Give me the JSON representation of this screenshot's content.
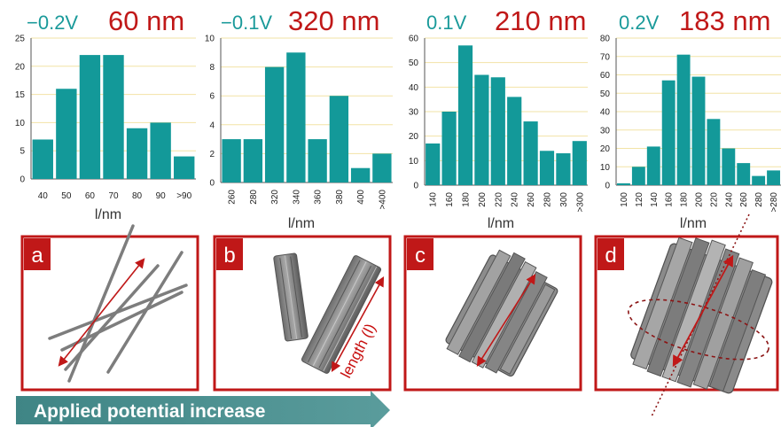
{
  "colors": {
    "bar": "#139999",
    "voltage": "#1a9a9a",
    "size": "#c01818",
    "frame": "#c01818",
    "axis": "#555555",
    "grid": "#f2e3a6",
    "banner": "#4e8f8f",
    "rod": "#8a8a8a"
  },
  "chart_data": [
    {
      "type": "bar",
      "voltage_label": "−0.2V",
      "size_label": "60 nm",
      "categories": [
        "40",
        "50",
        "60",
        "70",
        "80",
        "90",
        ">90"
      ],
      "values": [
        7,
        16,
        22,
        22,
        9,
        10,
        4
      ],
      "yticks": [
        "0",
        "5",
        "10",
        "15",
        "20",
        "25"
      ],
      "ylim": [
        0,
        25
      ],
      "xlabel": "l/nm",
      "grid": true
    },
    {
      "type": "bar",
      "voltage_label": "−0.1V",
      "size_label": "320 nm",
      "categories": [
        "260",
        "280",
        "320",
        "340",
        "360",
        "380",
        "400",
        ">400"
      ],
      "values": [
        3,
        3,
        8,
        9,
        3,
        6,
        1,
        2
      ],
      "yticks": [
        "0",
        "2",
        "4",
        "6",
        "8",
        "10"
      ],
      "ylim": [
        0,
        10
      ],
      "xlabel": "l/nm",
      "grid": true
    },
    {
      "type": "bar",
      "voltage_label": "0.1V",
      "size_label": "210 nm",
      "categories": [
        "140",
        "160",
        "180",
        "200",
        "220",
        "240",
        "260",
        "280",
        "300",
        ">300"
      ],
      "values": [
        17,
        30,
        57,
        45,
        44,
        36,
        26,
        14,
        13,
        18
      ],
      "yticks": [
        "0",
        "10",
        "20",
        "30",
        "40",
        "50",
        "60"
      ],
      "ylim": [
        0,
        60
      ],
      "xlabel": "l/nm",
      "grid": true
    },
    {
      "type": "bar",
      "voltage_label": "0.2V",
      "size_label": "183 nm",
      "categories": [
        "100",
        "120",
        "140",
        "160",
        "180",
        "200",
        "220",
        "240",
        "260",
        "280",
        ">280"
      ],
      "values": [
        1,
        10,
        21,
        57,
        71,
        59,
        36,
        20,
        12,
        5,
        8
      ],
      "yticks": [
        "0",
        "10",
        "20",
        "30",
        "40",
        "50",
        "60",
        "70",
        "80"
      ],
      "ylim": [
        0,
        80
      ],
      "xlabel": "l/nm",
      "grid": true
    }
  ],
  "panels": {
    "a": {
      "letter": "a"
    },
    "b": {
      "letter": "b",
      "length_label": "length (l)"
    },
    "c": {
      "letter": "c"
    },
    "d": {
      "letter": "d"
    }
  },
  "banner": {
    "text": "Applied potential increase"
  },
  "icons": [
    "double-headed-arrow-icon",
    "rotation-ellipse-icon"
  ]
}
